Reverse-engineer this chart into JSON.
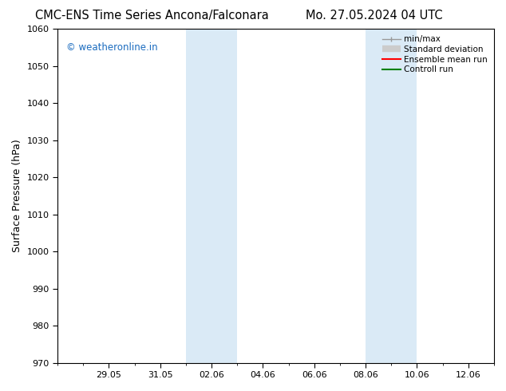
{
  "title_left": "CMC-ENS Time Series Ancona/Falconara",
  "title_right": "Mo. 27.05.2024 04 UTC",
  "ylabel": "Surface Pressure (hPa)",
  "ylim": [
    970,
    1060
  ],
  "yticks": [
    970,
    980,
    990,
    1000,
    1010,
    1020,
    1030,
    1040,
    1050,
    1060
  ],
  "xtick_labels": [
    "29.05",
    "31.05",
    "02.06",
    "04.06",
    "06.06",
    "08.06",
    "10.06",
    "12.06"
  ],
  "xtick_dates": [
    "2024-05-29",
    "2024-05-31",
    "2024-06-02",
    "2024-06-04",
    "2024-06-06",
    "2024-06-08",
    "2024-06-10",
    "2024-06-12"
  ],
  "xlim_start": "2024-05-27",
  "xlim_end": "2024-06-13",
  "shaded_regions": [
    {
      "start": "2024-06-01",
      "end": "2024-06-03"
    },
    {
      "start": "2024-06-08",
      "end": "2024-06-10"
    }
  ],
  "shaded_color": "#daeaf6",
  "watermark_text": "© weatheronline.in",
  "watermark_color": "#1a6bbf",
  "legend_labels": [
    "min/max",
    "Standard deviation",
    "Ensemble mean run",
    "Controll run"
  ],
  "legend_colors": [
    "#999999",
    "#cccccc",
    "#ff0000",
    "#008000"
  ],
  "background_color": "#ffffff",
  "plot_bg_color": "#ffffff",
  "title_fontsize": 10.5,
  "tick_fontsize": 8,
  "ylabel_fontsize": 9,
  "legend_fontsize": 7.5
}
